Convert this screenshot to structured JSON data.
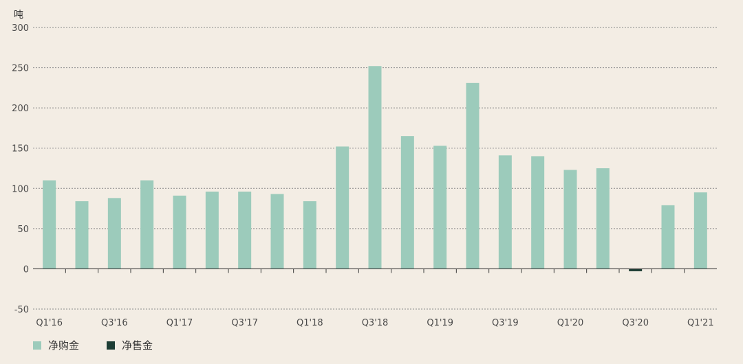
{
  "chart_data": {
    "type": "bar",
    "ylabel": "吨",
    "ylim": [
      -50,
      300
    ],
    "yticks": [
      300,
      250,
      200,
      150,
      100,
      50,
      0,
      -50
    ],
    "grid": true,
    "legend_position": "bottom-left",
    "categories": [
      "Q1'16",
      "Q2'16",
      "Q3'16",
      "Q4'16",
      "Q1'17",
      "Q2'17",
      "Q3'17",
      "Q4'17",
      "Q1'18",
      "Q2'18",
      "Q3'18",
      "Q4'18",
      "Q1'19",
      "Q2'19",
      "Q3'19",
      "Q4'19",
      "Q1'20",
      "Q2'20",
      "Q3'20",
      "Q4'20",
      "Q1'21"
    ],
    "x_tick_labels": [
      "Q1'16",
      "",
      "Q3'16",
      "",
      "Q1'17",
      "",
      "Q3'17",
      "",
      "Q1'18",
      "",
      "Q3'18",
      "",
      "Q1'19",
      "",
      "Q3'19",
      "",
      "Q1'20",
      "",
      "Q3'20",
      "",
      "Q1'21"
    ],
    "series": [
      {
        "name": "净购金",
        "color": "#9ccbbb",
        "values": [
          110,
          84,
          88,
          110,
          91,
          96,
          96,
          93,
          84,
          152,
          252,
          165,
          153,
          231,
          141,
          140,
          123,
          125,
          0,
          79,
          95
        ]
      },
      {
        "name": "净售金",
        "color": "#1d3d34",
        "values": [
          0,
          0,
          0,
          0,
          0,
          0,
          0,
          0,
          0,
          0,
          0,
          0,
          0,
          0,
          0,
          0,
          0,
          0,
          -3,
          0,
          0
        ]
      }
    ]
  }
}
